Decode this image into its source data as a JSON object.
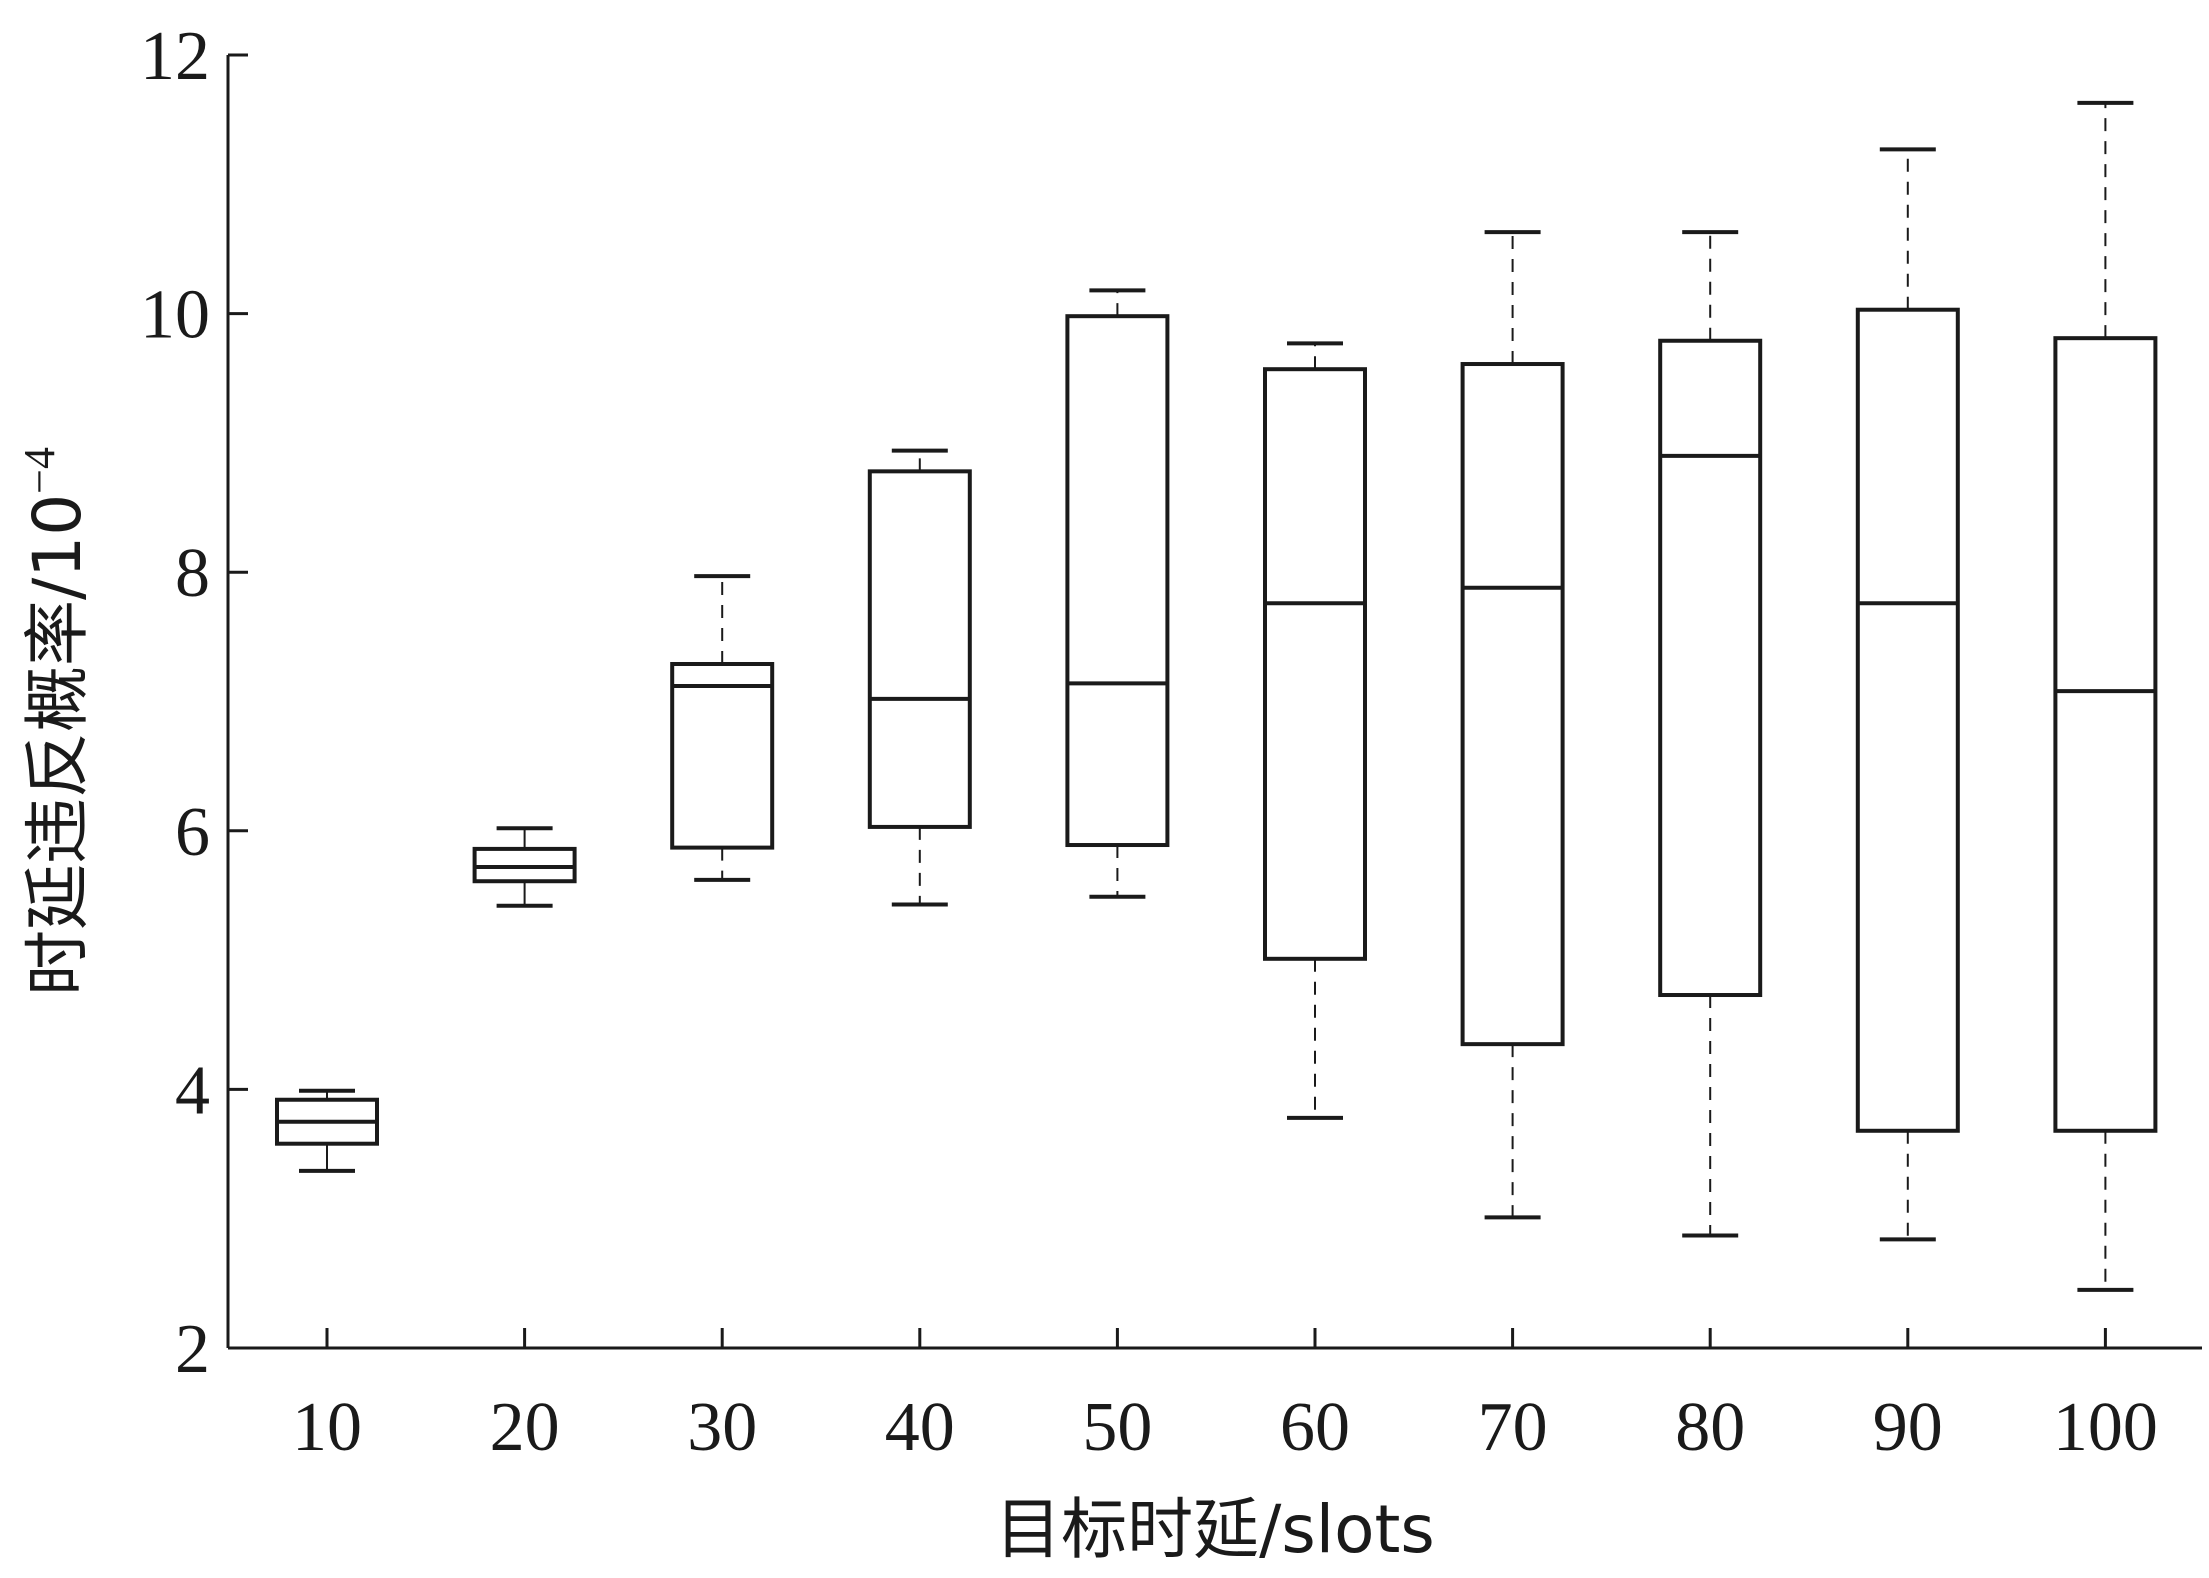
{
  "chart_data": {
    "type": "boxplot",
    "xlabel": "目标时延/slots",
    "ylabel_main": "时延违反概率/10",
    "ylabel_exponent": "−4",
    "ylim": [
      2,
      12
    ],
    "yticks": [
      2,
      4,
      6,
      8,
      10,
      12
    ],
    "categories": [
      "10",
      "20",
      "30",
      "40",
      "50",
      "60",
      "70",
      "80",
      "90",
      "100"
    ],
    "boxes": [
      {
        "category": "10",
        "whisker_low": 3.37,
        "q1": 3.58,
        "median": 3.75,
        "q3": 3.92,
        "whisker_high": 3.99
      },
      {
        "category": "20",
        "whisker_low": 5.42,
        "q1": 5.61,
        "median": 5.72,
        "q3": 5.86,
        "whisker_high": 6.02
      },
      {
        "category": "30",
        "whisker_low": 5.62,
        "q1": 5.87,
        "median": 7.12,
        "q3": 7.29,
        "whisker_high": 7.97
      },
      {
        "category": "40",
        "whisker_low": 5.43,
        "q1": 6.03,
        "median": 7.02,
        "q3": 8.78,
        "whisker_high": 8.94
      },
      {
        "category": "50",
        "whisker_low": 5.49,
        "q1": 5.89,
        "median": 7.14,
        "q3": 9.98,
        "whisker_high": 10.18
      },
      {
        "category": "60",
        "whisker_low": 3.78,
        "q1": 5.01,
        "median": 7.76,
        "q3": 9.57,
        "whisker_high": 9.77
      },
      {
        "category": "70",
        "whisker_low": 3.01,
        "q1": 4.35,
        "median": 7.88,
        "q3": 9.61,
        "whisker_high": 10.63
      },
      {
        "category": "80",
        "whisker_low": 2.87,
        "q1": 4.73,
        "median": 8.9,
        "q3": 9.79,
        "whisker_high": 10.63
      },
      {
        "category": "90",
        "whisker_low": 2.84,
        "q1": 3.68,
        "median": 7.76,
        "q3": 10.03,
        "whisker_high": 11.27
      },
      {
        "category": "100",
        "whisker_low": 2.45,
        "q1": 3.68,
        "median": 7.08,
        "q3": 9.81,
        "whisker_high": 11.63
      }
    ],
    "grid": false,
    "legend": "none",
    "colors": {
      "stroke": "#1a1a1a",
      "fill": "#ffffff"
    }
  }
}
